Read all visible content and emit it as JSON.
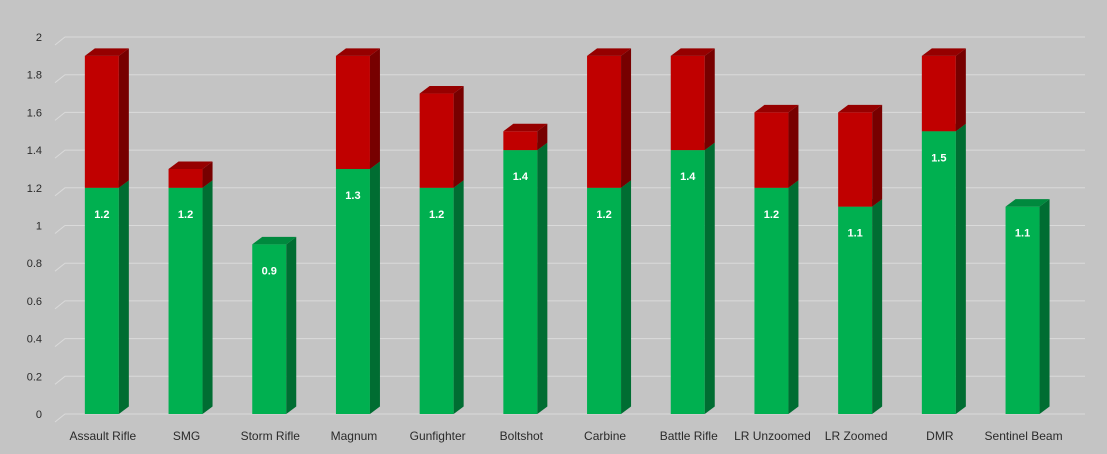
{
  "chart_data": {
    "type": "bar",
    "stacked": true,
    "three_d": true,
    "categories": [
      "Assault Rifle",
      "SMG",
      "Storm Rifle",
      "Magnum",
      "Gunfighter",
      "Boltshot",
      "Carbine",
      "Battle Rifle",
      "LR Unzoomed",
      "LR Zoomed",
      "DMR",
      "Sentinel Beam"
    ],
    "series": [
      {
        "color": "#00b050",
        "values": [
          1.2,
          1.2,
          0.9,
          1.3,
          1.2,
          1.4,
          1.2,
          1.4,
          1.2,
          1.1,
          1.5,
          1.1
        ],
        "data_labels": [
          "1.2",
          "1.2",
          "0.9",
          "1.3",
          "1.2",
          "1.4",
          "1.2",
          "1.4",
          "1.2",
          "1.1",
          "1.5",
          "1.1"
        ]
      },
      {
        "color": "#c00000",
        "values": [
          0.7,
          0.1,
          0.0,
          0.6,
          0.5,
          0.1,
          0.7,
          0.5,
          0.4,
          0.5,
          0.4,
          0.0
        ]
      }
    ],
    "y_ticks": [
      "0",
      "0.2",
      "0.4",
      "0.6",
      "0.8",
      "1",
      "1.2",
      "1.4",
      "1.6",
      "1.8",
      "2"
    ],
    "ylim": [
      0,
      2
    ],
    "grid": true,
    "legend": "none",
    "title": "",
    "xlabel": "",
    "ylabel": ""
  }
}
